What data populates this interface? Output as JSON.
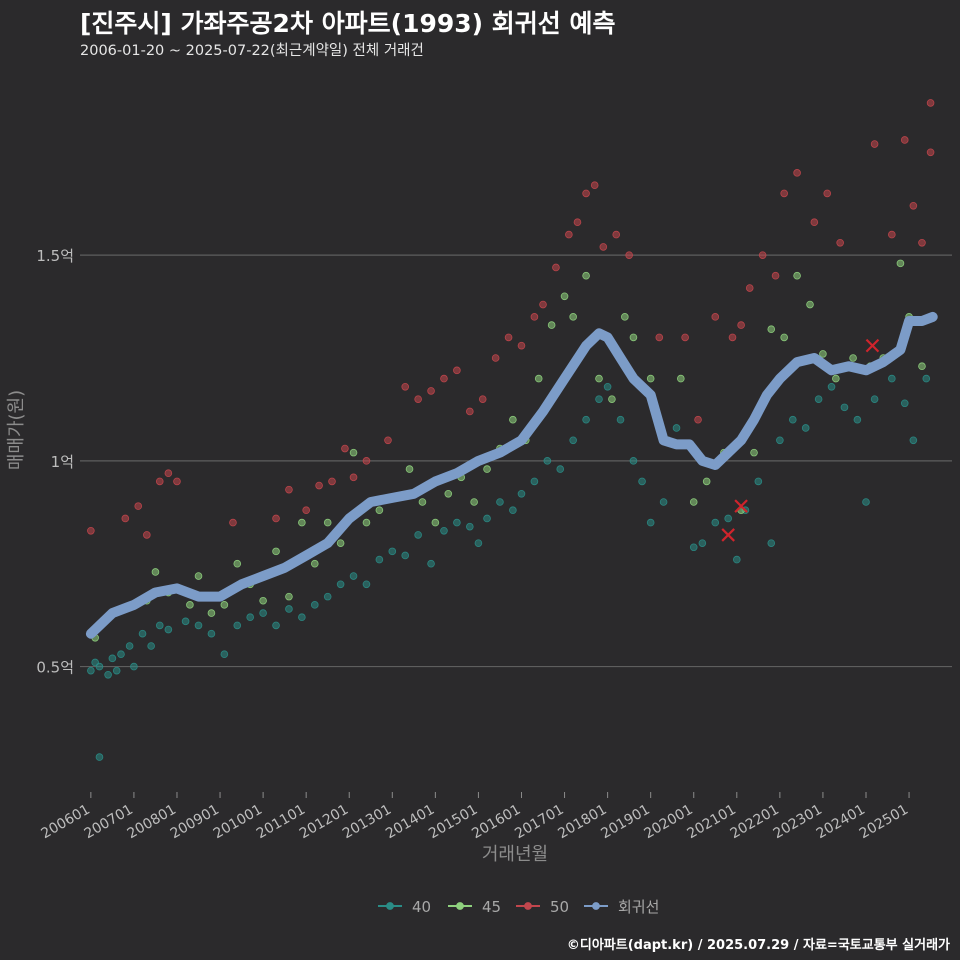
{
  "title": "[진주시] 가좌주공2차 아파트(1993) 회귀선 예측",
  "subtitle": "2006-01-20 ~ 2025-07-22(최근계약일) 전체 거래건",
  "caption": "©디아파트(dapt.kr) / 2025.07.29 / 자료=국토교통부 실거래가",
  "colors": {
    "background": "#2b2a2c",
    "grid": "#5e5e5e",
    "s40": "#2a8c86",
    "s45": "#8fd17e",
    "s50": "#c2464d",
    "regression": "#7c9cc8",
    "highlight": "#d0242c"
  },
  "chart_data": {
    "type": "scatter",
    "xlabel": "거래년월",
    "ylabel": "매매가(원)",
    "x_range": [
      "2005-10-01",
      "2025-12-31"
    ],
    "ylim": [
      0.2,
      1.95
    ],
    "y_ticks": [
      0.5,
      1.0,
      1.5
    ],
    "y_tick_labels": [
      "0.5억",
      "1억",
      "1.5억"
    ],
    "x_tick_labels": [
      "200601",
      "200701",
      "200801",
      "200901",
      "201001",
      "201101",
      "201201",
      "201301",
      "201401",
      "201501",
      "201601",
      "201701",
      "201801",
      "201901",
      "202001",
      "202101",
      "202201",
      "202301",
      "202401",
      "202501"
    ],
    "grid": "horizontal",
    "legend_position": "bottom",
    "legend": [
      {
        "label": "40",
        "key": "s40"
      },
      {
        "label": "45",
        "key": "s45"
      },
      {
        "label": "50",
        "key": "s50"
      },
      {
        "label": "회귀선",
        "key": "regression"
      }
    ],
    "regression": [
      [
        2006.0,
        0.58
      ],
      [
        2006.5,
        0.63
      ],
      [
        2007.0,
        0.65
      ],
      [
        2007.5,
        0.68
      ],
      [
        2008.0,
        0.69
      ],
      [
        2008.5,
        0.67
      ],
      [
        2009.0,
        0.67
      ],
      [
        2009.5,
        0.7
      ],
      [
        2010.0,
        0.72
      ],
      [
        2010.5,
        0.74
      ],
      [
        2011.0,
        0.77
      ],
      [
        2011.5,
        0.8
      ],
      [
        2012.0,
        0.86
      ],
      [
        2012.5,
        0.9
      ],
      [
        2013.0,
        0.91
      ],
      [
        2013.5,
        0.92
      ],
      [
        2014.0,
        0.95
      ],
      [
        2014.5,
        0.97
      ],
      [
        2015.0,
        1.0
      ],
      [
        2015.5,
        1.02
      ],
      [
        2016.0,
        1.05
      ],
      [
        2016.5,
        1.12
      ],
      [
        2017.0,
        1.2
      ],
      [
        2017.5,
        1.28
      ],
      [
        2017.8,
        1.31
      ],
      [
        2018.0,
        1.3
      ],
      [
        2018.3,
        1.25
      ],
      [
        2018.6,
        1.2
      ],
      [
        2019.0,
        1.16
      ],
      [
        2019.3,
        1.05
      ],
      [
        2019.6,
        1.04
      ],
      [
        2019.9,
        1.04
      ],
      [
        2020.2,
        1.0
      ],
      [
        2020.5,
        0.99
      ],
      [
        2020.8,
        1.02
      ],
      [
        2021.1,
        1.05
      ],
      [
        2021.4,
        1.1
      ],
      [
        2021.7,
        1.16
      ],
      [
        2022.0,
        1.2
      ],
      [
        2022.4,
        1.24
      ],
      [
        2022.8,
        1.25
      ],
      [
        2023.2,
        1.22
      ],
      [
        2023.6,
        1.23
      ],
      [
        2024.0,
        1.22
      ],
      [
        2024.4,
        1.24
      ],
      [
        2024.8,
        1.27
      ],
      [
        2025.0,
        1.34
      ],
      [
        2025.3,
        1.34
      ],
      [
        2025.55,
        1.35
      ]
    ],
    "points": {
      "s40": [
        [
          2006.0,
          0.49
        ],
        [
          2006.1,
          0.51
        ],
        [
          2006.2,
          0.5
        ],
        [
          2006.2,
          0.28
        ],
        [
          2006.4,
          0.48
        ],
        [
          2006.5,
          0.52
        ],
        [
          2006.6,
          0.49
        ],
        [
          2006.7,
          0.53
        ],
        [
          2006.9,
          0.55
        ],
        [
          2007.0,
          0.5
        ],
        [
          2007.2,
          0.58
        ],
        [
          2007.4,
          0.55
        ],
        [
          2007.6,
          0.6
        ],
        [
          2007.8,
          0.59
        ],
        [
          2008.2,
          0.61
        ],
        [
          2008.5,
          0.6
        ],
        [
          2008.8,
          0.58
        ],
        [
          2009.1,
          0.53
        ],
        [
          2009.4,
          0.6
        ],
        [
          2009.7,
          0.62
        ],
        [
          2010.0,
          0.63
        ],
        [
          2010.3,
          0.6
        ],
        [
          2010.6,
          0.64
        ],
        [
          2010.9,
          0.62
        ],
        [
          2011.2,
          0.65
        ],
        [
          2011.5,
          0.67
        ],
        [
          2011.8,
          0.7
        ],
        [
          2012.1,
          0.72
        ],
        [
          2012.4,
          0.7
        ],
        [
          2012.7,
          0.76
        ],
        [
          2013.0,
          0.78
        ],
        [
          2013.3,
          0.77
        ],
        [
          2013.6,
          0.82
        ],
        [
          2013.9,
          0.75
        ],
        [
          2014.2,
          0.83
        ],
        [
          2014.5,
          0.85
        ],
        [
          2014.8,
          0.84
        ],
        [
          2015.0,
          0.8
        ],
        [
          2015.2,
          0.86
        ],
        [
          2015.5,
          0.9
        ],
        [
          2015.8,
          0.88
        ],
        [
          2016.0,
          0.92
        ],
        [
          2016.3,
          0.95
        ],
        [
          2016.6,
          1.0
        ],
        [
          2016.9,
          0.98
        ],
        [
          2017.2,
          1.05
        ],
        [
          2017.5,
          1.1
        ],
        [
          2017.8,
          1.15
        ],
        [
          2018.0,
          1.18
        ],
        [
          2018.3,
          1.1
        ],
        [
          2018.6,
          1.0
        ],
        [
          2018.8,
          0.95
        ],
        [
          2019.0,
          0.85
        ],
        [
          2019.3,
          0.9
        ],
        [
          2019.6,
          1.08
        ],
        [
          2020.0,
          0.79
        ],
        [
          2020.2,
          0.8
        ],
        [
          2020.5,
          0.85
        ],
        [
          2020.8,
          0.86
        ],
        [
          2021.0,
          0.76
        ],
        [
          2021.2,
          0.88
        ],
        [
          2021.5,
          0.95
        ],
        [
          2021.8,
          0.8
        ],
        [
          2022.0,
          1.05
        ],
        [
          2022.3,
          1.1
        ],
        [
          2022.6,
          1.08
        ],
        [
          2022.9,
          1.15
        ],
        [
          2023.2,
          1.18
        ],
        [
          2023.5,
          1.13
        ],
        [
          2023.8,
          1.1
        ],
        [
          2024.0,
          0.9
        ],
        [
          2024.2,
          1.15
        ],
        [
          2024.6,
          1.2
        ],
        [
          2024.9,
          1.14
        ],
        [
          2025.1,
          1.05
        ],
        [
          2025.4,
          1.2
        ]
      ],
      "s45": [
        [
          2006.1,
          0.57
        ],
        [
          2006.4,
          0.62
        ],
        [
          2006.7,
          0.64
        ],
        [
          2007.0,
          0.65
        ],
        [
          2007.3,
          0.66
        ],
        [
          2007.5,
          0.73
        ],
        [
          2007.8,
          0.68
        ],
        [
          2008.3,
          0.65
        ],
        [
          2008.5,
          0.72
        ],
        [
          2008.8,
          0.63
        ],
        [
          2009.1,
          0.65
        ],
        [
          2009.4,
          0.75
        ],
        [
          2009.7,
          0.7
        ],
        [
          2010.0,
          0.66
        ],
        [
          2010.3,
          0.78
        ],
        [
          2010.6,
          0.67
        ],
        [
          2010.9,
          0.85
        ],
        [
          2011.2,
          0.75
        ],
        [
          2011.5,
          0.85
        ],
        [
          2011.8,
          0.8
        ],
        [
          2012.1,
          1.02
        ],
        [
          2012.4,
          0.85
        ],
        [
          2012.7,
          0.88
        ],
        [
          2013.0,
          0.91
        ],
        [
          2013.4,
          0.98
        ],
        [
          2013.7,
          0.9
        ],
        [
          2014.0,
          0.85
        ],
        [
          2014.3,
          0.92
        ],
        [
          2014.6,
          0.96
        ],
        [
          2014.9,
          0.9
        ],
        [
          2015.2,
          0.98
        ],
        [
          2015.5,
          1.03
        ],
        [
          2015.8,
          1.1
        ],
        [
          2016.1,
          1.05
        ],
        [
          2016.4,
          1.2
        ],
        [
          2016.7,
          1.33
        ],
        [
          2017.0,
          1.4
        ],
        [
          2017.2,
          1.35
        ],
        [
          2017.5,
          1.45
        ],
        [
          2017.8,
          1.2
        ],
        [
          2018.1,
          1.15
        ],
        [
          2018.4,
          1.35
        ],
        [
          2018.6,
          1.3
        ],
        [
          2019.0,
          1.2
        ],
        [
          2019.4,
          1.05
        ],
        [
          2019.7,
          1.2
        ],
        [
          2020.0,
          0.9
        ],
        [
          2020.3,
          0.95
        ],
        [
          2020.7,
          1.02
        ],
        [
          2021.1,
          0.88
        ],
        [
          2021.4,
          1.02
        ],
        [
          2021.8,
          1.32
        ],
        [
          2022.1,
          1.3
        ],
        [
          2022.4,
          1.45
        ],
        [
          2022.7,
          1.38
        ],
        [
          2023.0,
          1.26
        ],
        [
          2023.3,
          1.2
        ],
        [
          2023.7,
          1.25
        ],
        [
          2024.1,
          1.23
        ],
        [
          2024.4,
          1.25
        ],
        [
          2024.8,
          1.48
        ],
        [
          2025.0,
          1.35
        ],
        [
          2025.3,
          1.23
        ]
      ],
      "s50": [
        [
          2006.0,
          0.83
        ],
        [
          2006.8,
          0.86
        ],
        [
          2007.1,
          0.89
        ],
        [
          2007.3,
          0.82
        ],
        [
          2007.6,
          0.95
        ],
        [
          2007.8,
          0.97
        ],
        [
          2008.0,
          0.95
        ],
        [
          2009.3,
          0.85
        ],
        [
          2010.3,
          0.86
        ],
        [
          2010.6,
          0.93
        ],
        [
          2011.0,
          0.88
        ],
        [
          2011.3,
          0.94
        ],
        [
          2011.6,
          0.95
        ],
        [
          2011.9,
          1.03
        ],
        [
          2012.1,
          0.96
        ],
        [
          2012.4,
          1.0
        ],
        [
          2012.9,
          1.05
        ],
        [
          2013.3,
          1.18
        ],
        [
          2013.6,
          1.15
        ],
        [
          2013.9,
          1.17
        ],
        [
          2014.2,
          1.2
        ],
        [
          2014.5,
          1.22
        ],
        [
          2014.8,
          1.12
        ],
        [
          2015.1,
          1.15
        ],
        [
          2015.4,
          1.25
        ],
        [
          2015.7,
          1.3
        ],
        [
          2016.0,
          1.28
        ],
        [
          2016.3,
          1.35
        ],
        [
          2016.5,
          1.38
        ],
        [
          2016.8,
          1.47
        ],
        [
          2017.1,
          1.55
        ],
        [
          2017.3,
          1.58
        ],
        [
          2017.5,
          1.65
        ],
        [
          2017.7,
          1.67
        ],
        [
          2017.9,
          1.52
        ],
        [
          2018.2,
          1.55
        ],
        [
          2018.5,
          1.5
        ],
        [
          2019.2,
          1.3
        ],
        [
          2019.8,
          1.3
        ],
        [
          2020.1,
          1.1
        ],
        [
          2020.5,
          1.35
        ],
        [
          2020.9,
          1.3
        ],
        [
          2021.1,
          1.33
        ],
        [
          2021.3,
          1.42
        ],
        [
          2021.6,
          1.5
        ],
        [
          2021.9,
          1.45
        ],
        [
          2022.1,
          1.65
        ],
        [
          2022.4,
          1.7
        ],
        [
          2022.8,
          1.58
        ],
        [
          2023.1,
          1.65
        ],
        [
          2023.4,
          1.53
        ],
        [
          2024.2,
          1.77
        ],
        [
          2024.6,
          1.55
        ],
        [
          2024.9,
          1.78
        ],
        [
          2025.1,
          1.62
        ],
        [
          2025.3,
          1.53
        ],
        [
          2025.5,
          1.75
        ],
        [
          2025.5,
          1.87
        ]
      ]
    },
    "highlights": [
      [
        2020.8,
        0.82
      ],
      [
        2021.1,
        0.89
      ],
      [
        2024.15,
        1.28
      ]
    ]
  }
}
